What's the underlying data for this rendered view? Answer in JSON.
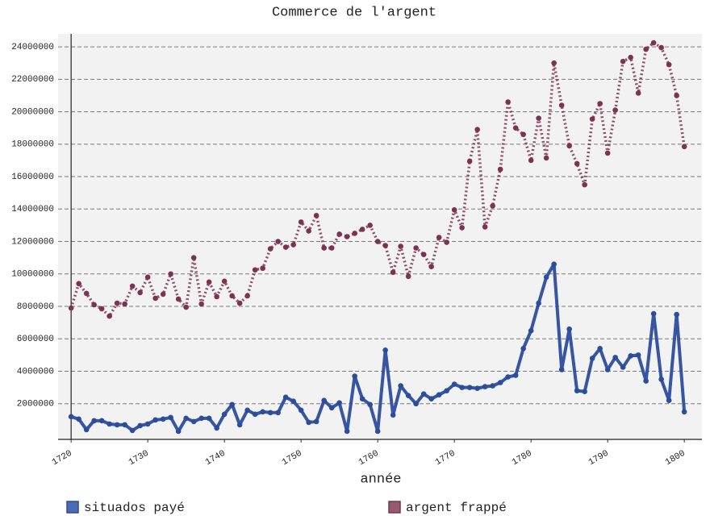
{
  "chart_data": {
    "type": "line",
    "title": "Commerce de l'argent",
    "x_label": "année",
    "x": [
      1720,
      1721,
      1722,
      1723,
      1724,
      1725,
      1726,
      1727,
      1728,
      1729,
      1730,
      1731,
      1732,
      1733,
      1734,
      1735,
      1736,
      1737,
      1738,
      1739,
      1740,
      1741,
      1742,
      1743,
      1744,
      1745,
      1746,
      1747,
      1748,
      1749,
      1750,
      1751,
      1752,
      1753,
      1754,
      1755,
      1756,
      1757,
      1758,
      1759,
      1760,
      1761,
      1762,
      1763,
      1764,
      1765,
      1766,
      1767,
      1768,
      1769,
      1770,
      1771,
      1772,
      1773,
      1774,
      1775,
      1776,
      1777,
      1778,
      1779,
      1780,
      1781,
      1782,
      1783,
      1784,
      1785,
      1786,
      1787,
      1788,
      1789,
      1790,
      1791,
      1792,
      1793,
      1794,
      1795,
      1796,
      1797,
      1798,
      1799,
      1800
    ],
    "series": [
      {
        "name": "situados payé",
        "color": "#2c4c9c",
        "legend_color": "#4a6ab4",
        "line_style": "solid",
        "values": [
          1200000,
          1050000,
          400000,
          950000,
          950000,
          750000,
          700000,
          700000,
          350000,
          650000,
          750000,
          1000000,
          1050000,
          1150000,
          300000,
          1100000,
          900000,
          1100000,
          1100000,
          500000,
          1350000,
          1950000,
          700000,
          1600000,
          1350000,
          1500000,
          1450000,
          1450000,
          2400000,
          2150000,
          1600000,
          850000,
          900000,
          2200000,
          1750000,
          2050000,
          300000,
          3700000,
          2300000,
          1950000,
          300000,
          5300000,
          1300000,
          3100000,
          2500000,
          2000000,
          2600000,
          2300000,
          2550000,
          2800000,
          3200000,
          3000000,
          3000000,
          2950000,
          3050000,
          3100000,
          3300000,
          3650000,
          3750000,
          5400000,
          6500000,
          8200000,
          9800000,
          10600000,
          4100000,
          6600000,
          2800000,
          2750000,
          4800000,
          5400000,
          4100000,
          4850000,
          4250000,
          4950000,
          5000000,
          3400000,
          7550000,
          3500000,
          2200000,
          7500000,
          1500000
        ]
      },
      {
        "name": "argent frappé",
        "color": "#7d3350",
        "legend_color": "#955a6e",
        "line_style": "dotted",
        "values": [
          7900000,
          9400000,
          8800000,
          8100000,
          7850000,
          7400000,
          8200000,
          8150000,
          9250000,
          8850000,
          9800000,
          8500000,
          8750000,
          10000000,
          8450000,
          7950000,
          11000000,
          8150000,
          9500000,
          8600000,
          9550000,
          8650000,
          8200000,
          8650000,
          10250000,
          10350000,
          11550000,
          12000000,
          11650000,
          11800000,
          13200000,
          12650000,
          13600000,
          11600000,
          11600000,
          12450000,
          12300000,
          12500000,
          12750000,
          13000000,
          12000000,
          11750000,
          10100000,
          11700000,
          9850000,
          11600000,
          11200000,
          10450000,
          12250000,
          11950000,
          13950000,
          12850000,
          16950000,
          18900000,
          12900000,
          14200000,
          16450000,
          20600000,
          19000000,
          18600000,
          17000000,
          19600000,
          17150000,
          23000000,
          20400000,
          17900000,
          16800000,
          15500000,
          19550000,
          20500000,
          17450000,
          20100000,
          23100000,
          23350000,
          21150000,
          23850000,
          24250000,
          23950000,
          22900000,
          21000000,
          17850000
        ]
      }
    ],
    "xlim": [
      1718.3,
      1802.3
    ],
    "xticks": [
      1720,
      1730,
      1740,
      1750,
      1760,
      1770,
      1780,
      1790,
      1800
    ],
    "ylim": [
      -200000,
      24800000
    ],
    "yticks": [
      2000000,
      4000000,
      6000000,
      8000000,
      10000000,
      12000000,
      14000000,
      16000000,
      18000000,
      20000000,
      22000000,
      24000000
    ],
    "grid": true,
    "legend": "bottom"
  }
}
